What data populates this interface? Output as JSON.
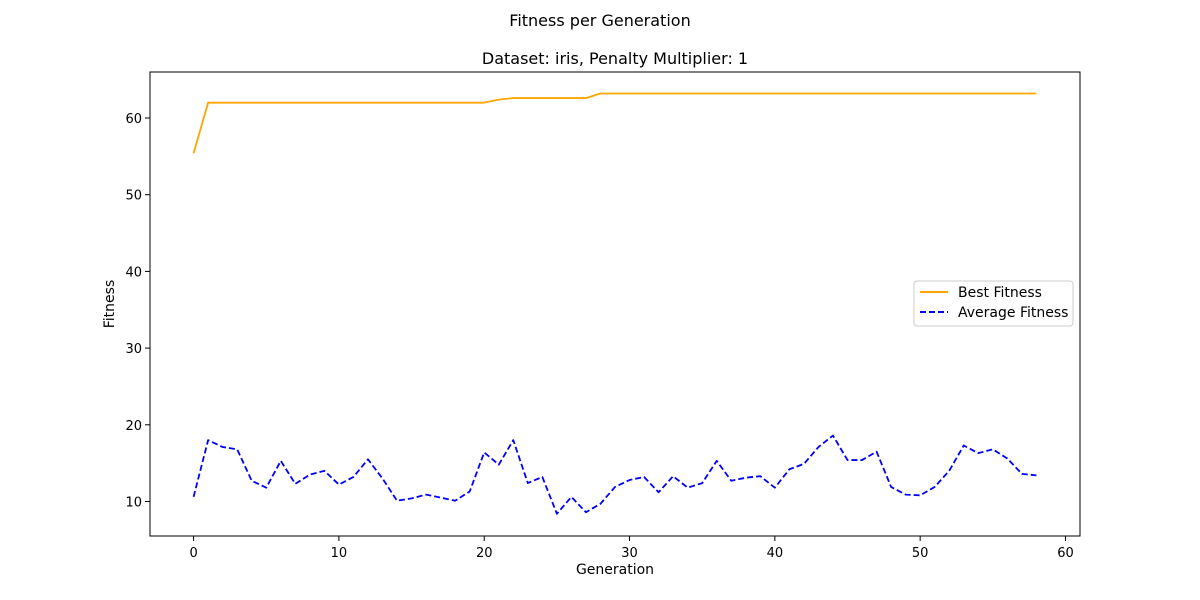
{
  "figure": {
    "suptitle": "Fitness per Generation"
  },
  "chart_data": {
    "type": "line",
    "title": "Dataset: iris, Penalty Multiplier: 1",
    "xlabel": "Generation",
    "ylabel": "Fitness",
    "xlim": [
      -3,
      61
    ],
    "ylim": [
      5.5,
      66
    ],
    "xticks": [
      0,
      10,
      20,
      30,
      40,
      50,
      60
    ],
    "yticks": [
      10,
      20,
      30,
      40,
      50,
      60
    ],
    "grid": false,
    "legend_position": "center-right",
    "x": [
      0,
      1,
      2,
      3,
      4,
      5,
      6,
      7,
      8,
      9,
      10,
      11,
      12,
      13,
      14,
      15,
      16,
      17,
      18,
      19,
      20,
      21,
      22,
      23,
      24,
      25,
      26,
      27,
      28,
      29,
      30,
      31,
      32,
      33,
      34,
      35,
      36,
      37,
      38,
      39,
      40,
      41,
      42,
      43,
      44,
      45,
      46,
      47,
      48,
      49,
      50,
      51,
      52,
      53,
      54,
      55,
      56,
      57,
      58
    ],
    "series": [
      {
        "name": "Best Fitness",
        "color": "#ffa500",
        "style": "solid",
        "values": [
          55.4,
          62.0,
          62.0,
          62.0,
          62.0,
          62.0,
          62.0,
          62.0,
          62.0,
          62.0,
          62.0,
          62.0,
          62.0,
          62.0,
          62.0,
          62.0,
          62.0,
          62.0,
          62.0,
          62.0,
          62.0,
          62.4,
          62.6,
          62.6,
          62.6,
          62.6,
          62.6,
          62.6,
          63.2,
          63.2,
          63.2,
          63.2,
          63.2,
          63.2,
          63.2,
          63.2,
          63.2,
          63.2,
          63.2,
          63.2,
          63.2,
          63.2,
          63.2,
          63.2,
          63.2,
          63.2,
          63.2,
          63.2,
          63.2,
          63.2,
          63.2,
          63.2,
          63.2,
          63.2,
          63.2,
          63.2,
          63.2,
          63.2,
          63.2
        ]
      },
      {
        "name": "Average Fitness",
        "color": "#0000ff",
        "style": "dashed",
        "values": [
          10.6,
          18.0,
          17.1,
          16.8,
          12.7,
          11.8,
          15.3,
          12.3,
          13.5,
          14.0,
          12.2,
          13.2,
          15.5,
          13.0,
          10.1,
          10.4,
          10.9,
          10.5,
          10.1,
          11.3,
          16.4,
          14.8,
          18.0,
          12.4,
          13.2,
          8.4,
          10.6,
          8.6,
          9.7,
          11.9,
          12.8,
          13.2,
          11.2,
          13.3,
          11.8,
          12.4,
          15.3,
          12.7,
          13.1,
          13.3,
          11.8,
          14.2,
          14.9,
          17.1,
          18.6,
          15.4,
          15.4,
          16.5,
          11.9,
          10.9,
          10.8,
          11.9,
          14.0,
          17.3,
          16.3,
          16.8,
          15.6,
          13.6,
          13.4
        ]
      }
    ]
  }
}
